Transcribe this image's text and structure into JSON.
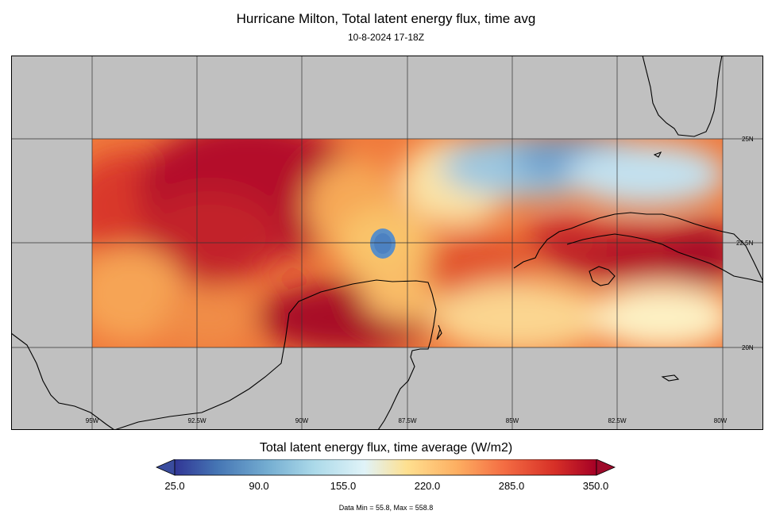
{
  "header": {
    "title": "Hurricane Milton, Total latent energy flux, time avg",
    "subtitle": "10-8-2024 17-18Z"
  },
  "map": {
    "background_color": "#c0c0c0",
    "coastline_color": "#000000",
    "lon_ticks": [
      {
        "value": -95,
        "label": "95W"
      },
      {
        "value": -92.5,
        "label": "92.5W"
      },
      {
        "value": -90,
        "label": "90W"
      },
      {
        "value": -87.5,
        "label": "87.5W"
      },
      {
        "value": -85,
        "label": "85W"
      },
      {
        "value": -82.5,
        "label": "82.5W"
      },
      {
        "value": -80,
        "label": "80W"
      }
    ],
    "lat_ticks": [
      {
        "value": 25,
        "label": "25N"
      },
      {
        "value": 22.5,
        "label": "22.5N"
      },
      {
        "value": 20,
        "label": "20N"
      }
    ],
    "data_extent": {
      "lon": [
        -95,
        -80
      ],
      "lat": [
        20,
        25
      ]
    }
  },
  "colorbar": {
    "title": "Total latent energy flux, time average (W/m2)",
    "min": 25.0,
    "max": 350.0,
    "ticks": [
      "25.0",
      "90.0",
      "155.0",
      "220.0",
      "285.0",
      "350.0"
    ],
    "under_color": "#3a4c9e",
    "over_color": "#9e0a2a"
  },
  "footnote": "Data Min = 55.8, Max = 558.8"
}
